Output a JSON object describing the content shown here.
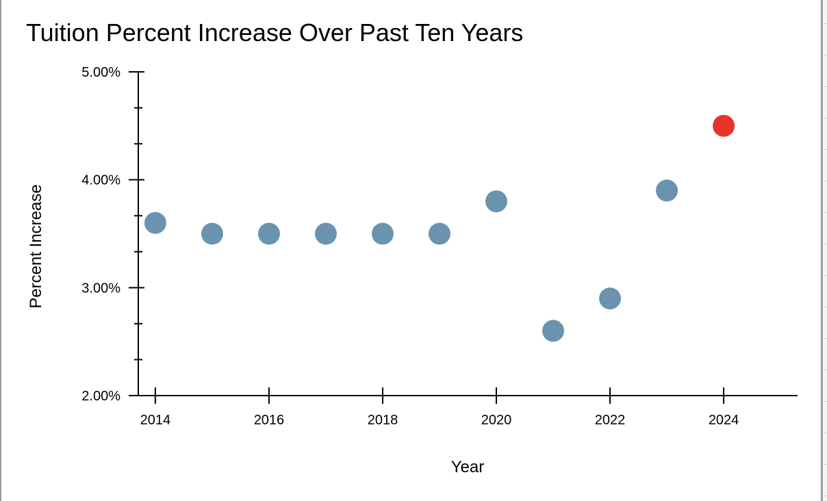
{
  "chart_data": {
    "type": "scatter",
    "title": "Tuition Percent Increase Over Past Ten Years",
    "xlabel": "Year",
    "ylabel": "Percent Increase",
    "xlim": [
      2013.7,
      2025.3
    ],
    "ylim": [
      2.0,
      5.0
    ],
    "x_tick_labels": [
      "2014",
      "2016",
      "2018",
      "2020",
      "2022",
      "2024"
    ],
    "y_tick_labels": [
      "2.00%",
      "3.00%",
      "4.00%",
      "5.00%"
    ],
    "grid": false,
    "legend": "none",
    "points": [
      {
        "x": 2014,
        "y": 3.6,
        "color": "#6a93b0"
      },
      {
        "x": 2015,
        "y": 3.5,
        "color": "#6a93b0"
      },
      {
        "x": 2016,
        "y": 3.5,
        "color": "#6a93b0"
      },
      {
        "x": 2017,
        "y": 3.5,
        "color": "#6a93b0"
      },
      {
        "x": 2018,
        "y": 3.5,
        "color": "#6a93b0"
      },
      {
        "x": 2019,
        "y": 3.5,
        "color": "#6a93b0"
      },
      {
        "x": 2020,
        "y": 3.8,
        "color": "#6a93b0"
      },
      {
        "x": 2021,
        "y": 2.6,
        "color": "#6a93b0"
      },
      {
        "x": 2022,
        "y": 2.9,
        "color": "#6a93b0"
      },
      {
        "x": 2023,
        "y": 3.9,
        "color": "#6a93b0"
      },
      {
        "x": 2024,
        "y": 4.5,
        "color": "#e8352a"
      }
    ]
  }
}
